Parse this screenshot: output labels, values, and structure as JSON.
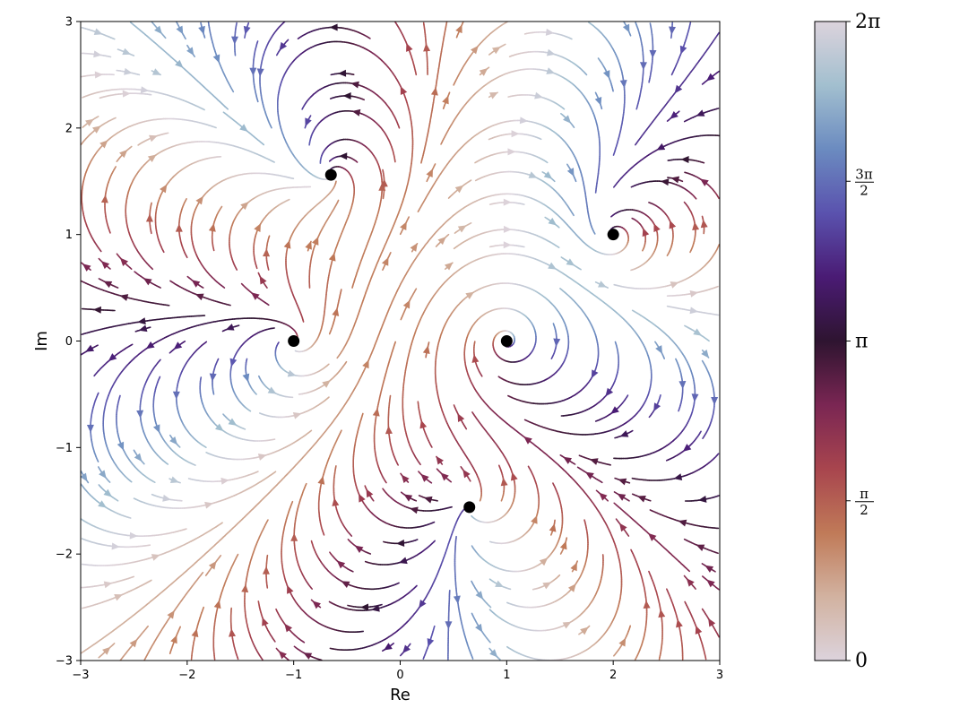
{
  "chart_data": {
    "type": "streamplot",
    "xlabel": "Re",
    "ylabel": "Im",
    "xlim": [
      -3,
      3
    ],
    "ylim": [
      -3,
      3
    ],
    "x_ticks": [
      -3,
      -2,
      -1,
      0,
      1,
      2,
      3
    ],
    "y_ticks": [
      -3,
      -2,
      -1,
      0,
      1,
      2,
      3
    ],
    "x_tick_labels": [
      "−3",
      "−2",
      "−1",
      "0",
      "1",
      "2",
      "3"
    ],
    "y_tick_labels": [
      "−3",
      "−2",
      "−1",
      "0",
      "1",
      "2",
      "3"
    ],
    "grid": false,
    "critical_points": [
      {
        "x": -0.65,
        "y": 1.56
      },
      {
        "x": 2.0,
        "y": 1.0
      },
      {
        "x": -1.0,
        "y": 0.0
      },
      {
        "x": 1.0,
        "y": 0.0
      },
      {
        "x": 0.65,
        "y": -1.56
      }
    ],
    "colorbar": {
      "colormap": "twilight_shifted",
      "range": [
        0,
        6.2832
      ],
      "ticks": [
        {
          "value": 0,
          "label": "0"
        },
        {
          "value": 1.5708,
          "label": "π/2"
        },
        {
          "value": 3.1416,
          "label": "π"
        },
        {
          "value": 4.7124,
          "label": "3π/2"
        },
        {
          "value": 6.2832,
          "label": "2π"
        }
      ],
      "color_stops": [
        "#dcd3dc",
        "#d2b2a0",
        "#c07a58",
        "#a8454e",
        "#7a2653",
        "#2e1430",
        "#4a1b74",
        "#5a52ae",
        "#6b8bc0",
        "#a2bfcf",
        "#dcd3dc"
      ]
    }
  }
}
